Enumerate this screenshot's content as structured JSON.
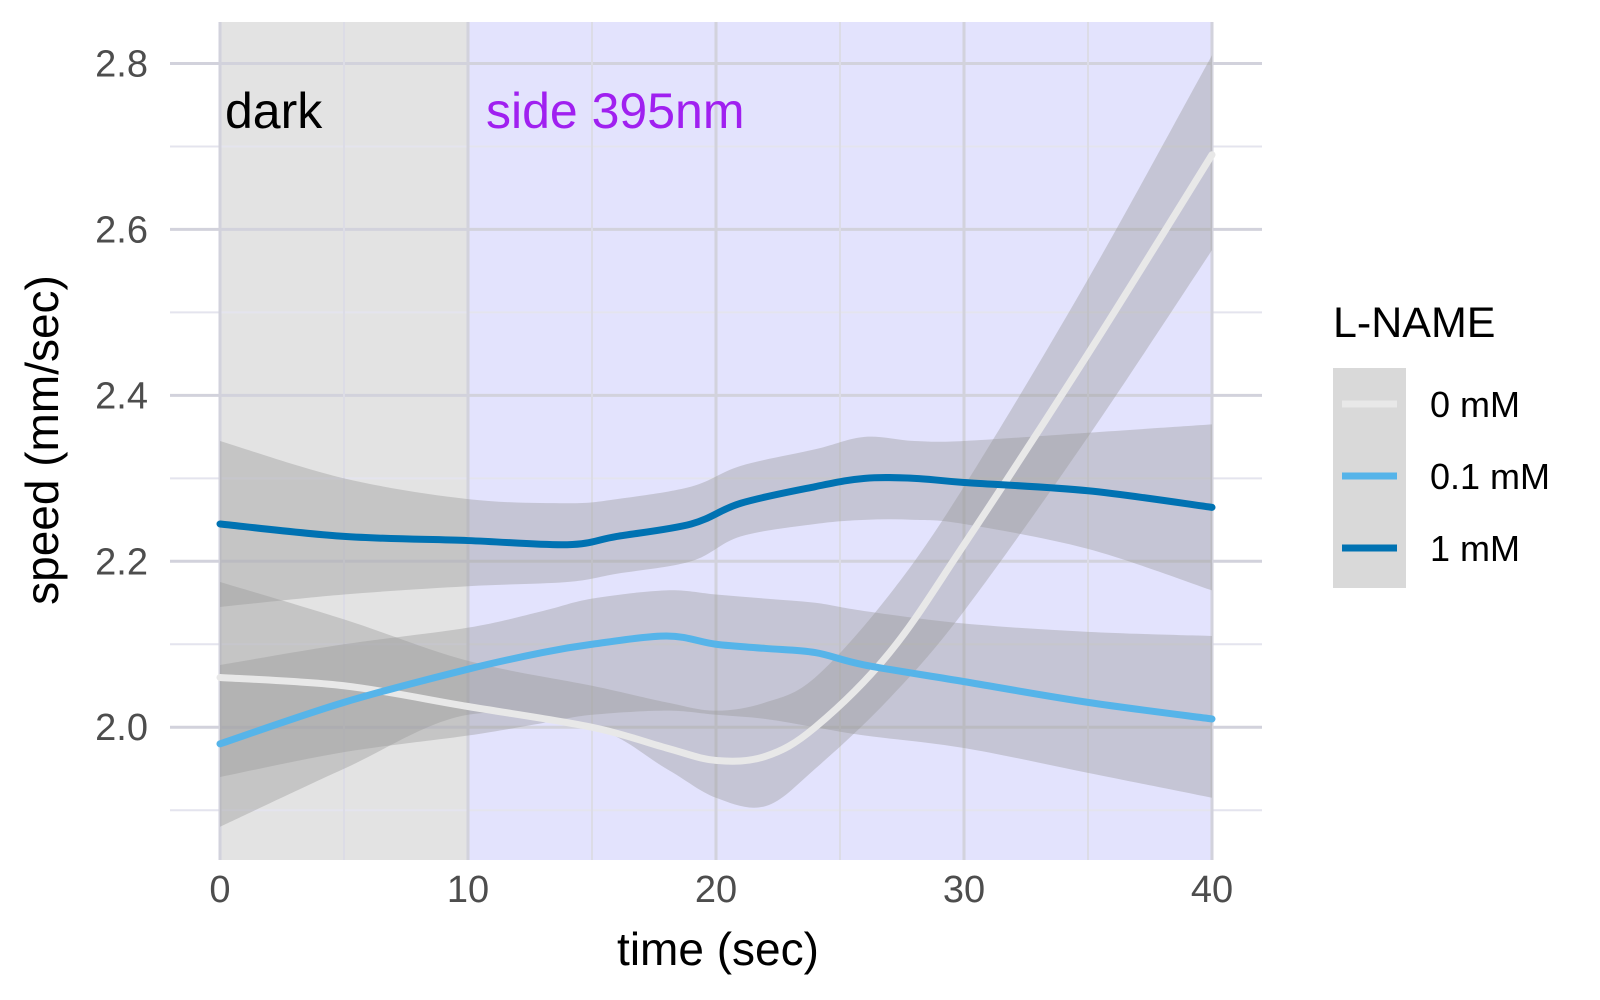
{
  "chart_data": {
    "type": "line",
    "xlabel": "time (sec)",
    "ylabel": "speed (mm/sec)",
    "xlim": [
      0,
      40
    ],
    "ylim": [
      1.84,
      2.85
    ],
    "x_ticks": [
      "0",
      "10",
      "20",
      "30",
      "40"
    ],
    "y_ticks": [
      "2.0",
      "2.2",
      "2.4",
      "2.6",
      "2.8"
    ],
    "grid": true,
    "regions": [
      {
        "label": "dark",
        "x_start": 0,
        "x_end": 10,
        "fill": "#e3e3e3",
        "label_color": "#000000"
      },
      {
        "label": "side 395nm",
        "x_start": 10,
        "x_end": 40,
        "fill": "#e3e3fd",
        "label_color": "#a020f0"
      }
    ],
    "legend": {
      "title": "L-NAME",
      "position": "right"
    },
    "series": [
      {
        "name": "0 mM",
        "color": "#e8e8e8",
        "x": [
          0,
          5,
          10,
          15,
          18,
          20,
          22,
          24,
          27,
          30,
          35,
          40
        ],
        "y": [
          2.06,
          2.05,
          2.025,
          2.0,
          1.975,
          1.96,
          1.965,
          2.0,
          2.09,
          2.22,
          2.45,
          2.69
        ],
        "lower": [
          1.88,
          1.95,
          2.015,
          2.0,
          1.95,
          1.915,
          1.905,
          1.95,
          2.035,
          2.14,
          2.35,
          2.575
        ],
        "upper": [
          2.175,
          2.13,
          2.08,
          2.05,
          2.03,
          2.02,
          2.03,
          2.06,
          2.16,
          2.29,
          2.54,
          2.81
        ]
      },
      {
        "name": "0.1 mM",
        "color": "#56b4e9",
        "x": [
          0,
          5,
          10,
          13,
          15,
          18,
          20,
          22,
          24,
          26,
          30,
          35,
          40
        ],
        "y": [
          1.98,
          2.03,
          2.07,
          2.09,
          2.1,
          2.11,
          2.1,
          2.095,
          2.09,
          2.075,
          2.055,
          2.03,
          2.01
        ],
        "lower": [
          1.94,
          1.97,
          1.99,
          2.005,
          2.015,
          2.02,
          2.015,
          2.01,
          2.0,
          1.99,
          1.975,
          1.945,
          1.915
        ],
        "upper": [
          2.075,
          2.1,
          2.12,
          2.14,
          2.155,
          2.165,
          2.16,
          2.155,
          2.15,
          2.14,
          2.125,
          2.115,
          2.11
        ]
      },
      {
        "name": "1 mM",
        "color": "#0072b2",
        "x": [
          0,
          5,
          10,
          14,
          16,
          19,
          21,
          24,
          26,
          28,
          30,
          35,
          40
        ],
        "y": [
          2.245,
          2.23,
          2.225,
          2.22,
          2.23,
          2.245,
          2.27,
          2.29,
          2.3,
          2.3,
          2.295,
          2.285,
          2.265
        ],
        "lower": [
          2.145,
          2.16,
          2.17,
          2.175,
          2.185,
          2.2,
          2.23,
          2.245,
          2.25,
          2.25,
          2.245,
          2.215,
          2.165
        ],
        "upper": [
          2.345,
          2.3,
          2.275,
          2.27,
          2.275,
          2.29,
          2.315,
          2.335,
          2.35,
          2.345,
          2.345,
          2.355,
          2.365
        ]
      }
    ]
  }
}
